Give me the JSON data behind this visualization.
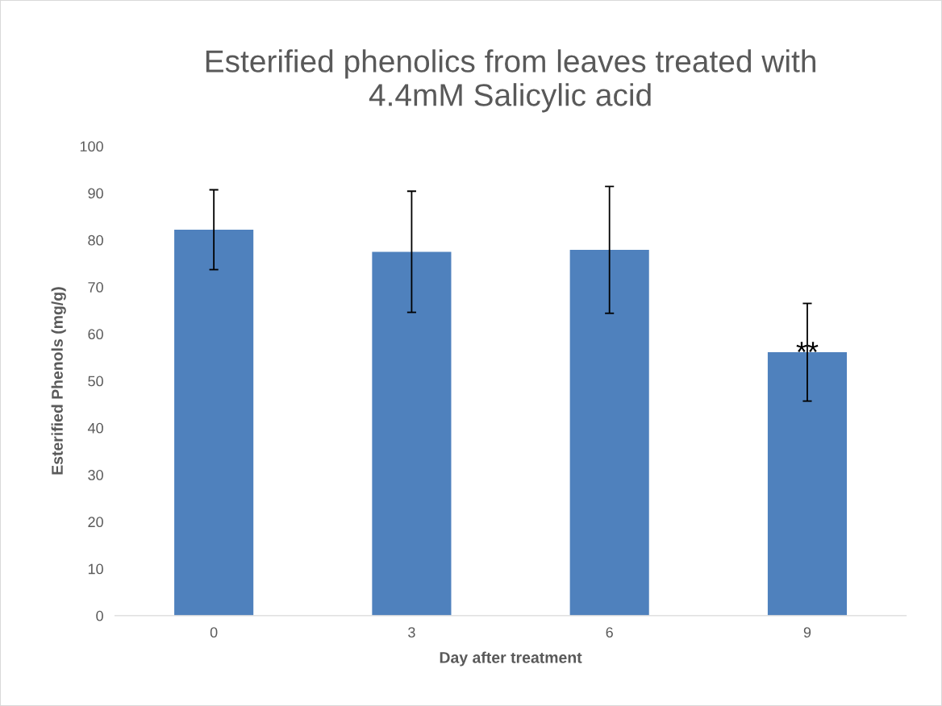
{
  "chart_data": {
    "type": "bar",
    "title": "Esterified phenolics from leaves treated with\n4.4mM Salicylic acid",
    "xlabel": "Day after treatment",
    "ylabel": "Esterified Phenols (mg/g)",
    "categories": [
      "0",
      "3",
      "6",
      "9"
    ],
    "values": [
      82.2,
      77.5,
      77.9,
      56.1
    ],
    "errors": [
      8.5,
      12.9,
      13.5,
      10.4
    ],
    "color": "#4f81bd",
    "ylim": [
      0,
      100
    ],
    "yticks": [
      0,
      10,
      20,
      30,
      40,
      50,
      60,
      70,
      80,
      90,
      100
    ],
    "grid": false,
    "annotations": [
      {
        "text": "**",
        "x": "9",
        "y": 56.1
      }
    ]
  }
}
